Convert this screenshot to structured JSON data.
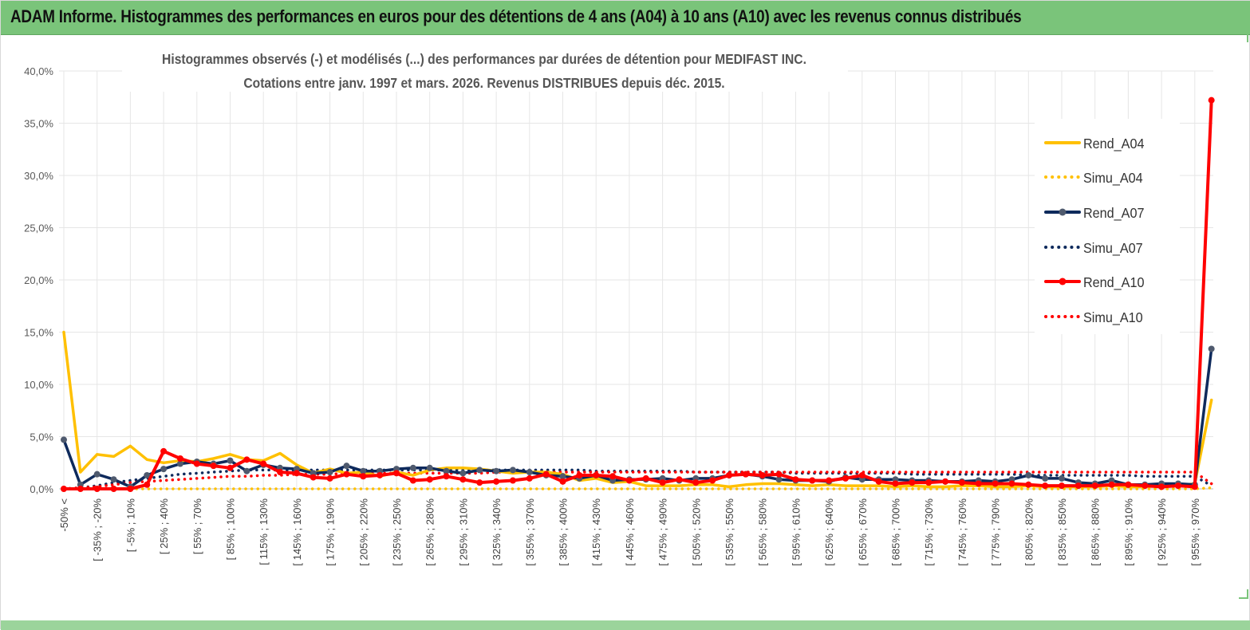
{
  "header": {
    "title": "ADAM Informe. Histogrammes des performances en euros pour des détentions de 4 ans (A04) à 10 ans (A10) avec les revenus connus distribués"
  },
  "colors": {
    "A04": "#ffc000",
    "A07": "#0e2a5c",
    "A07_marker": "#4f5a6e",
    "A10": "#ff0000",
    "grid": "#e6e6e6",
    "band": "#7ac47a"
  },
  "chart_data": {
    "type": "line",
    "title_line1": "Histogrammes observés (-) et modélisés (...) des performances par durées de détention pour MEDIFAST INC.",
    "title_line2": "Cotations entre janv. 1997 et mars. 2026. Revenus DISTRIBUES depuis déc. 2015.",
    "ylim": [
      0,
      40
    ],
    "yticks": [
      0,
      5,
      10,
      15,
      20,
      25,
      30,
      35,
      40
    ],
    "ytick_labels": [
      "0,0%",
      "5,0%",
      "10,0%",
      "15,0%",
      "20,0%",
      "25,0%",
      "30,0%",
      "35,0%",
      "40,0%"
    ],
    "x_labels": [
      "-50% <",
      "[ -35% ; -20%",
      "[ -5% ; 10%",
      "[ 25% ; 40%",
      "[ 55% ; 70%",
      "[ 85% ; 100%",
      "[ 115% ; 130%",
      "[ 145% ; 160%",
      "[ 175% ; 190%",
      "[ 205% ; 220%",
      "[ 235% ; 250%",
      "[ 265% ; 280%",
      "[ 295% ; 310%",
      "[ 325% ; 340%",
      "[ 355% ; 370%",
      "[ 385% ; 400%",
      "[ 415% ; 430%",
      "[ 445% ; 460%",
      "[ 475% ; 490%",
      "[ 505% ; 520%",
      "[ 535% ; 550%",
      "[ 565% ; 580%",
      "[ 595% ; 610%",
      "[ 625% ; 640%",
      "[ 655% ; 670%",
      "[ 685% ; 700%",
      "[ 715% ; 730%",
      "[ 745% ; 760%",
      "[ 775% ; 790%",
      "[ 805% ; 820%",
      "[ 835% ; 850%",
      "[ 865% ; 880%",
      "[ 895% ; 910%",
      "[ 925% ; 940%",
      "[ 955% ; 970%"
    ],
    "x_label_indices": [
      0,
      2,
      4,
      6,
      8,
      10,
      12,
      14,
      16,
      18,
      20,
      22,
      24,
      26,
      28,
      30,
      32,
      34,
      36,
      38,
      40,
      42,
      44,
      46,
      48,
      50,
      52,
      54,
      56,
      58,
      60,
      62,
      64,
      66,
      68
    ],
    "legend": [
      "Rend_A04",
      "Simu_A04",
      "Rend_A07",
      "Simu_A07",
      "Rend_A10",
      "Simu_A10"
    ],
    "legend_position": "right",
    "series": [
      {
        "name": "Rend_A04",
        "style": "solid",
        "marker": false,
        "color": "#ffc000",
        "values": [
          15.0,
          1.6,
          3.3,
          3.1,
          4.1,
          2.8,
          2.5,
          2.7,
          2.6,
          2.9,
          3.3,
          2.8,
          2.7,
          3.4,
          2.3,
          1.5,
          1.9,
          1.5,
          1.6,
          1.2,
          1.6,
          1.3,
          1.8,
          2.0,
          2.0,
          1.9,
          1.7,
          1.5,
          1.6,
          1.6,
          1.4,
          0.8,
          1.0,
          0.6,
          0.7,
          0.3,
          0.3,
          0.3,
          0.4,
          0.4,
          0.2,
          0.4,
          0.5,
          0.5,
          0.4,
          0.3,
          0.4,
          0.3,
          0.3,
          0.3,
          0.2,
          0.3,
          0.2,
          0.2,
          0.3,
          0.3,
          0.2,
          0.2,
          0.3,
          0.2,
          0.2,
          0.2,
          0.2,
          0.3,
          0.2,
          0.2,
          0.3,
          0.3,
          0.5,
          8.5
        ]
      },
      {
        "name": "Simu_A04",
        "style": "dotted",
        "marker": false,
        "color": "#ffc000",
        "values": [
          0.0,
          0.0,
          0.0,
          0.0,
          0.0,
          0.0,
          0.0,
          0.0,
          0.0,
          0.0,
          0.0,
          0.0,
          0.0,
          0.0,
          0.0,
          0.0,
          0.0,
          0.0,
          0.0,
          0.0,
          0.0,
          0.0,
          0.0,
          0.0,
          0.0,
          0.0,
          0.0,
          0.0,
          0.0,
          0.0,
          0.0,
          0.0,
          0.0,
          0.0,
          0.0,
          0.0,
          0.0,
          0.0,
          0.0,
          0.0,
          0.0,
          0.0,
          0.0,
          0.0,
          0.0,
          0.0,
          0.0,
          0.0,
          0.0,
          0.0,
          0.0,
          0.0,
          0.0,
          0.0,
          0.0,
          0.0,
          0.0,
          0.0,
          0.0,
          0.0,
          0.0,
          0.0,
          0.0,
          0.0,
          0.0,
          0.0,
          0.0,
          0.0,
          0.0,
          0.1
        ]
      },
      {
        "name": "Rend_A07",
        "style": "solid",
        "marker": true,
        "color": "#0e2a5c",
        "values": [
          4.7,
          0.4,
          1.4,
          0.9,
          0.2,
          1.3,
          1.9,
          2.4,
          2.6,
          2.4,
          2.7,
          1.7,
          2.3,
          2.0,
          1.9,
          1.5,
          1.6,
          2.2,
          1.7,
          1.7,
          1.9,
          2.0,
          2.0,
          1.7,
          1.5,
          1.8,
          1.7,
          1.8,
          1.6,
          1.3,
          1.2,
          1.0,
          1.3,
          0.8,
          0.9,
          0.9,
          1.0,
          0.8,
          1.0,
          1.0,
          1.3,
          1.4,
          1.2,
          0.9,
          0.8,
          0.8,
          0.7,
          1.1,
          0.9,
          0.9,
          0.9,
          0.8,
          0.8,
          0.7,
          0.7,
          0.8,
          0.7,
          0.9,
          1.3,
          1.0,
          1.0,
          0.6,
          0.5,
          0.8,
          0.4,
          0.4,
          0.5,
          0.5,
          0.4,
          13.4
        ]
      },
      {
        "name": "Simu_A07",
        "style": "dotted",
        "marker": false,
        "color": "#0e2a5c",
        "values": [
          0.0,
          0.1,
          0.3,
          0.6,
          0.8,
          1.0,
          1.2,
          1.4,
          1.5,
          1.6,
          1.7,
          1.8,
          1.8,
          1.8,
          1.8,
          1.8,
          1.8,
          1.8,
          1.8,
          1.8,
          1.8,
          1.8,
          1.8,
          1.8,
          1.8,
          1.8,
          1.8,
          1.8,
          1.8,
          1.8,
          1.8,
          1.8,
          1.7,
          1.7,
          1.7,
          1.7,
          1.7,
          1.7,
          1.6,
          1.6,
          1.6,
          1.6,
          1.6,
          1.6,
          1.5,
          1.5,
          1.5,
          1.5,
          1.5,
          1.5,
          1.5,
          1.4,
          1.4,
          1.4,
          1.4,
          1.4,
          1.4,
          1.4,
          1.3,
          1.3,
          1.3,
          1.3,
          1.3,
          1.3,
          1.3,
          1.2,
          1.2,
          1.2,
          1.2,
          0.3
        ]
      },
      {
        "name": "Rend_A10",
        "style": "solid",
        "marker": true,
        "color": "#ff0000",
        "values": [
          0.0,
          0.0,
          0.0,
          0.0,
          0.0,
          0.4,
          3.6,
          2.9,
          2.4,
          2.2,
          2.0,
          2.8,
          2.4,
          1.6,
          1.5,
          1.1,
          1.0,
          1.4,
          1.2,
          1.3,
          1.5,
          0.8,
          0.9,
          1.2,
          0.9,
          0.6,
          0.7,
          0.8,
          1.0,
          1.4,
          0.7,
          1.3,
          1.3,
          1.2,
          0.8,
          1.0,
          0.6,
          0.9,
          0.6,
          0.8,
          1.3,
          1.4,
          1.3,
          1.4,
          0.9,
          0.8,
          0.8,
          1.0,
          1.3,
          0.7,
          0.5,
          0.6,
          0.6,
          0.7,
          0.6,
          0.5,
          0.5,
          0.5,
          0.4,
          0.3,
          0.3,
          0.3,
          0.3,
          0.4,
          0.4,
          0.3,
          0.2,
          0.3,
          0.2,
          37.2
        ]
      },
      {
        "name": "Simu_A10",
        "style": "dotted",
        "marker": false,
        "color": "#ff0000",
        "values": [
          0.0,
          0.1,
          0.2,
          0.4,
          0.6,
          0.7,
          0.8,
          0.9,
          1.0,
          1.1,
          1.2,
          1.2,
          1.3,
          1.3,
          1.4,
          1.4,
          1.4,
          1.5,
          1.5,
          1.5,
          1.5,
          1.5,
          1.5,
          1.5,
          1.5,
          1.5,
          1.6,
          1.6,
          1.6,
          1.6,
          1.6,
          1.6,
          1.6,
          1.6,
          1.6,
          1.6,
          1.6,
          1.6,
          1.6,
          1.6,
          1.6,
          1.6,
          1.6,
          1.6,
          1.6,
          1.6,
          1.6,
          1.6,
          1.6,
          1.6,
          1.6,
          1.6,
          1.6,
          1.6,
          1.6,
          1.6,
          1.6,
          1.6,
          1.6,
          1.6,
          1.6,
          1.6,
          1.6,
          1.6,
          1.6,
          1.6,
          1.6,
          1.6,
          1.6,
          0.5
        ]
      }
    ]
  }
}
